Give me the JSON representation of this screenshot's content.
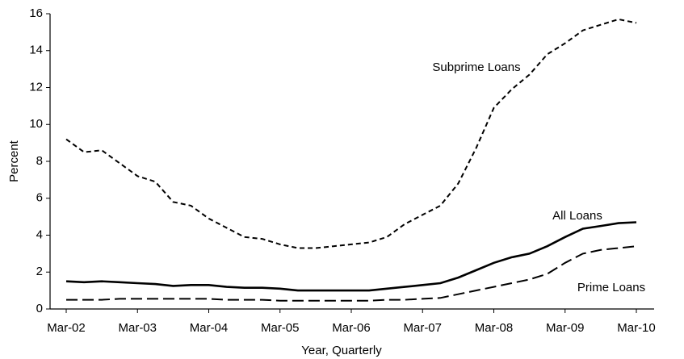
{
  "chart_data": {
    "type": "line",
    "x_label": "Year, Quarterly",
    "y_label": "Percent",
    "categories": [
      "Mar-02",
      null,
      null,
      null,
      "Mar-03",
      null,
      null,
      null,
      "Mar-04",
      null,
      null,
      null,
      "Mar-05",
      null,
      null,
      null,
      "Mar-06",
      null,
      null,
      null,
      "Mar-07",
      null,
      null,
      null,
      "Mar-08",
      null,
      null,
      null,
      "Mar-09",
      null,
      null,
      null,
      "Mar-10"
    ],
    "series": [
      {
        "name": "Subprime Loans",
        "color": "#000000",
        "style": "dashed",
        "values": [
          9.2,
          8.5,
          8.6,
          7.9,
          7.2,
          6.9,
          5.8,
          5.6,
          4.9,
          4.4,
          3.9,
          3.8,
          3.5,
          3.3,
          3.3,
          3.4,
          3.5,
          3.6,
          3.9,
          4.6,
          5.1,
          5.6,
          6.8,
          8.7,
          10.9,
          11.9,
          12.7,
          13.8,
          14.4,
          15.1,
          15.4,
          15.7,
          15.5
        ]
      },
      {
        "name": "All Loans",
        "color": "#000000",
        "style": "solid",
        "values": [
          1.5,
          1.45,
          1.5,
          1.45,
          1.4,
          1.35,
          1.25,
          1.3,
          1.3,
          1.2,
          1.15,
          1.15,
          1.1,
          1.0,
          1.0,
          1.0,
          1.0,
          1.0,
          1.1,
          1.2,
          1.3,
          1.4,
          1.7,
          2.1,
          2.5,
          2.8,
          3.0,
          3.4,
          3.9,
          4.35,
          4.5,
          4.65,
          4.7
        ]
      },
      {
        "name": "Prime Loans",
        "color": "#000000",
        "style": "longdash",
        "values": [
          0.5,
          0.5,
          0.5,
          0.55,
          0.55,
          0.55,
          0.55,
          0.55,
          0.55,
          0.5,
          0.5,
          0.5,
          0.45,
          0.45,
          0.45,
          0.45,
          0.45,
          0.45,
          0.5,
          0.5,
          0.55,
          0.6,
          0.8,
          1.0,
          1.2,
          1.4,
          1.6,
          1.9,
          2.5,
          3.0,
          3.2,
          3.3,
          3.4
        ]
      }
    ],
    "ylim": [
      0,
      16
    ],
    "yticks": [
      0,
      2,
      4,
      6,
      8,
      10,
      12,
      14,
      16
    ],
    "grid": false
  }
}
